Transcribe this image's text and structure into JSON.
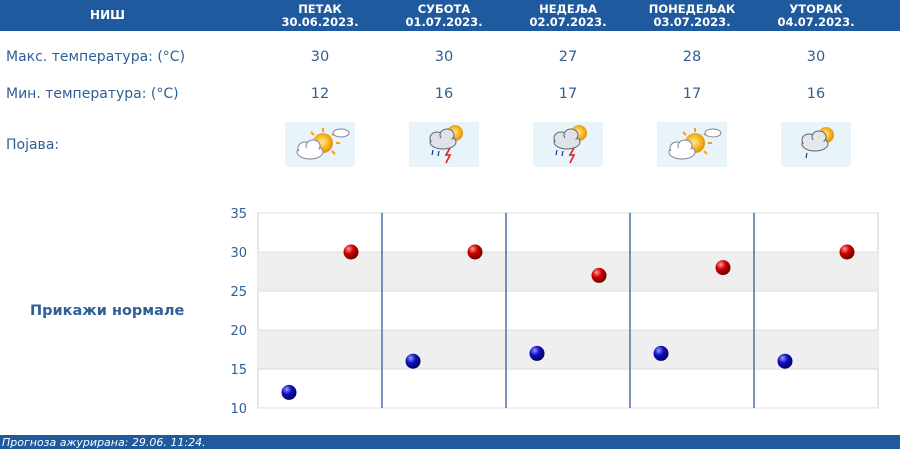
{
  "header": {
    "city": "НИШ",
    "days": [
      {
        "day": "ПЕТАК",
        "date": "30.06.2023."
      },
      {
        "day": "СУБОТА",
        "date": "01.07.2023."
      },
      {
        "day": "НЕДЕЉА",
        "date": "02.07.2023."
      },
      {
        "day": "ПОНЕДЕЉАК",
        "date": "03.07.2023."
      },
      {
        "day": "УТОРАК",
        "date": "04.07.2023."
      }
    ]
  },
  "rows": {
    "max_label": "Макс. температура: (°C)",
    "min_label": "Мин. температура: (°C)",
    "phenomenon_label": "Појава:"
  },
  "max_values": [
    "30",
    "30",
    "27",
    "28",
    "30"
  ],
  "min_values": [
    "12",
    "16",
    "17",
    "17",
    "16"
  ],
  "icons": [
    "partly-cloudy-sun-icon",
    "thunderstorm-rain-icon",
    "thunderstorm-rain-icon",
    "partly-cloudy-sun-icon",
    "cloudy-sun-rain-icon"
  ],
  "show_normals": "Прикажи нормале",
  "footer": "Прогноза ажурирана:  29.06.  11:24.",
  "colors": {
    "header": "#1f5a9e",
    "text": "#2f5f97",
    "max_marker": "#cc0000",
    "min_marker": "#0000aa"
  },
  "chart_data": {
    "type": "scatter",
    "categories": [
      "30.06.2023.",
      "01.07.2023.",
      "02.07.2023.",
      "03.07.2023.",
      "04.07.2023."
    ],
    "series": [
      {
        "values": [
          30,
          30,
          27,
          28,
          30
        ],
        "color": "#cc0000"
      },
      {
        "values": [
          12,
          16,
          17,
          17,
          16
        ],
        "color": "#0000aa"
      }
    ],
    "ylim": [
      10,
      35
    ],
    "yticks": [
      "35",
      "30",
      "25",
      "20",
      "15",
      "10"
    ]
  }
}
